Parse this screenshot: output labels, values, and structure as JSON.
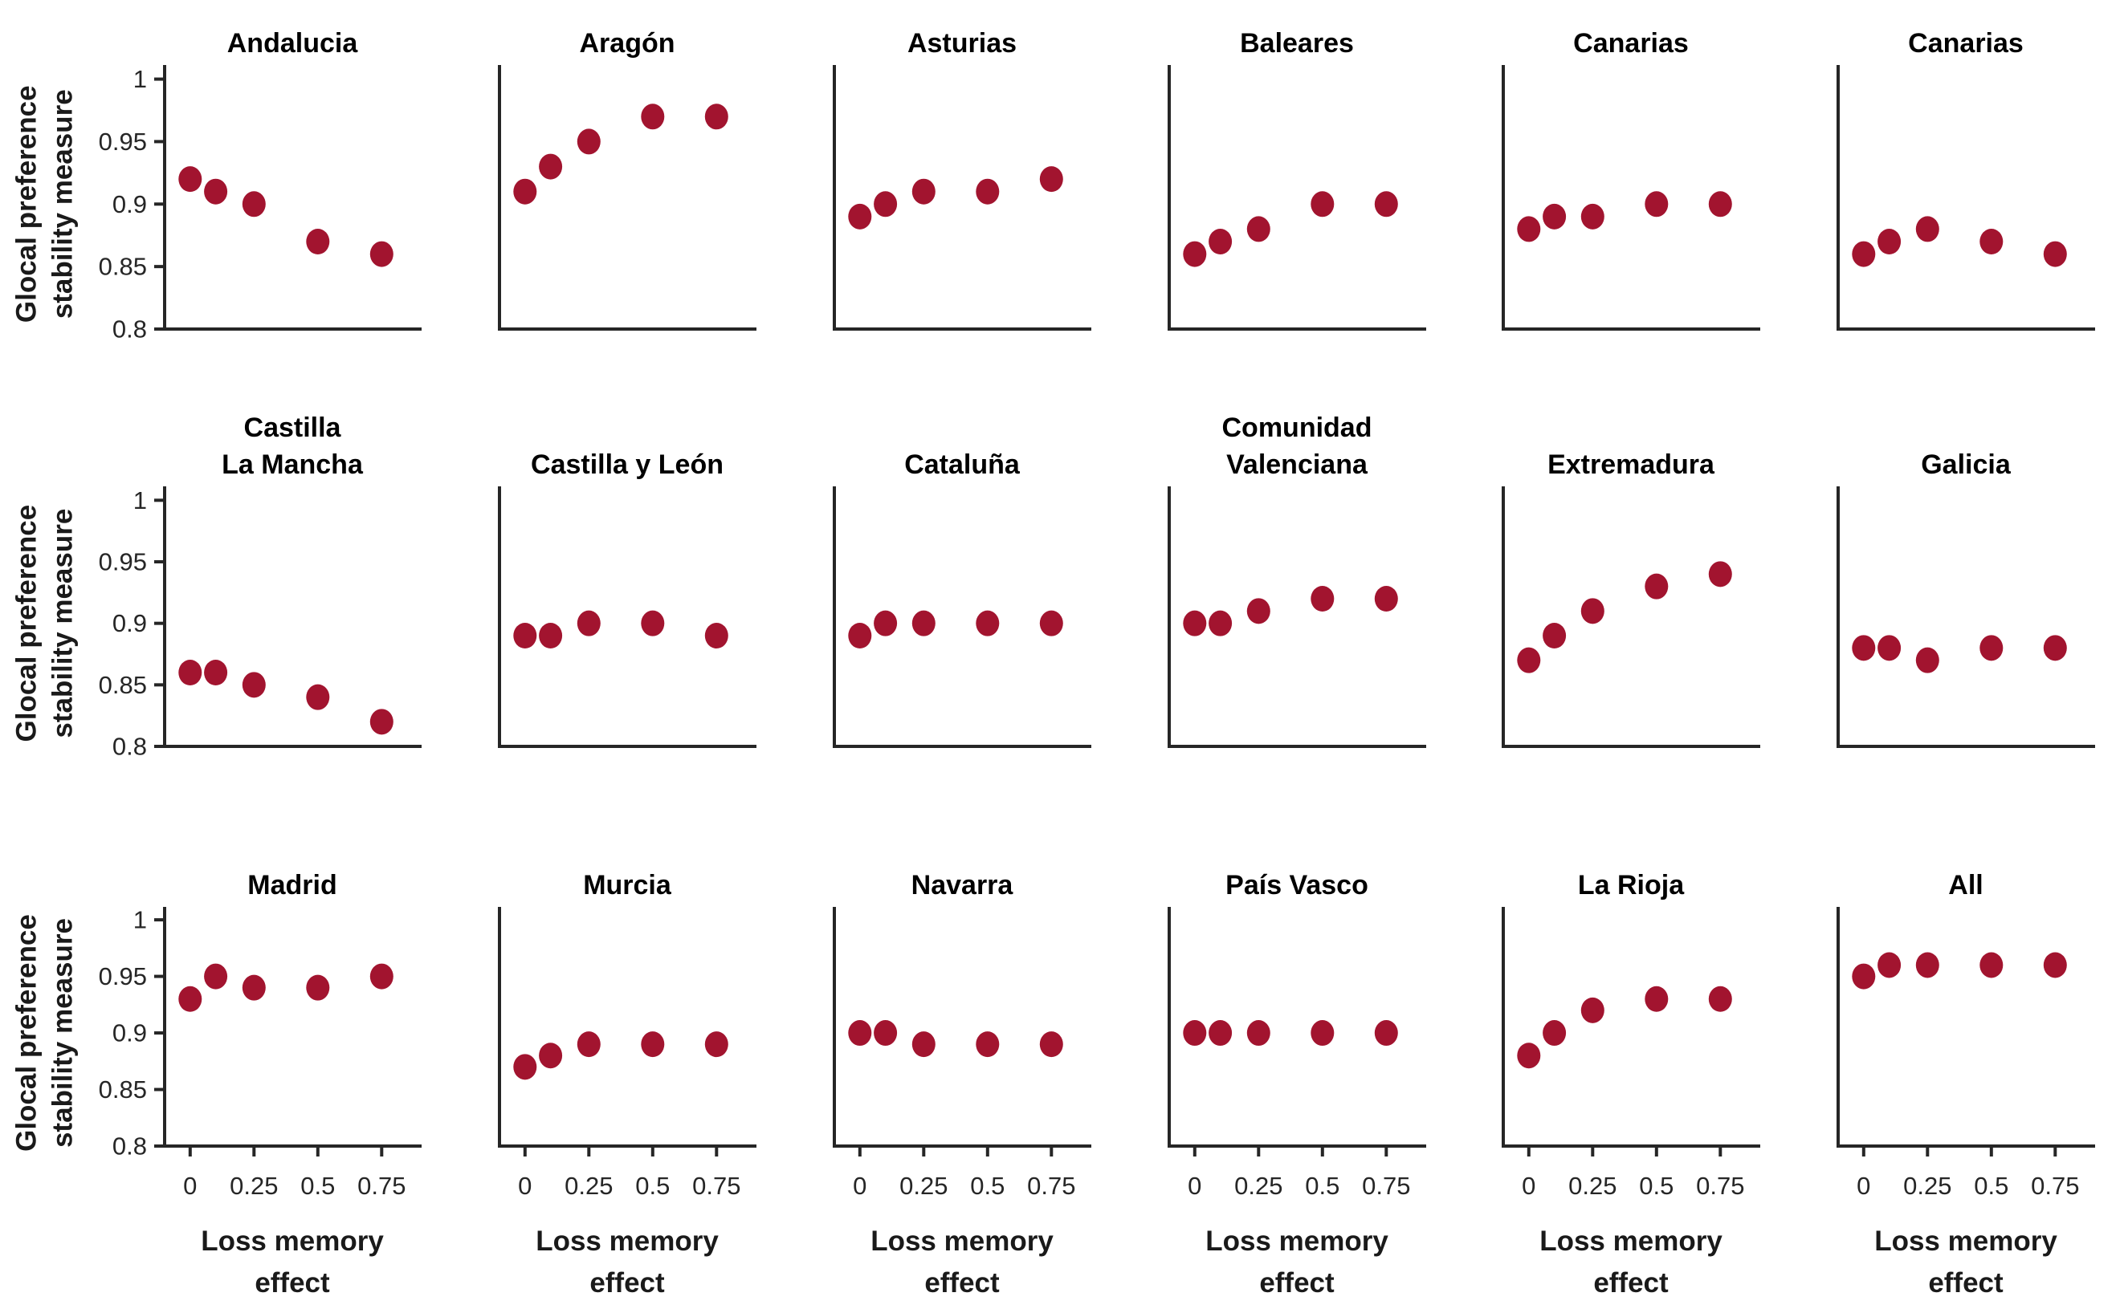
{
  "figure": {
    "background": "#ffffff",
    "description_title": "Glocal preference stability measure vs Loss memory effect by region"
  },
  "chart_data": {
    "type": "scatter",
    "layout": {
      "grid_rows": 3,
      "grid_cols": 6,
      "legend": "none",
      "grid_lines": false,
      "box": "left-and-bottom-axes-only",
      "tick_direction": "out"
    },
    "x": [
      0,
      0.1,
      0.25,
      0.5,
      0.75
    ],
    "xlim": [
      -0.1,
      0.9
    ],
    "ylim": [
      0.8,
      1.01
    ],
    "x_tick_values": [
      0,
      0.25,
      0.5,
      0.75
    ],
    "x_tick_labels": [
      "0",
      "0.25",
      "0.5",
      "0.75"
    ],
    "y_tick_values": [
      0.8,
      0.85,
      0.9,
      0.95,
      1
    ],
    "y_tick_labels": [
      "0.8",
      "0.85",
      "0.9",
      "0.95",
      "1"
    ],
    "xlabel_lines": [
      "Loss memory",
      "effect"
    ],
    "ylabel_lines": [
      "Glocal preference",
      "stability measure"
    ],
    "marker_color": "#A2142F",
    "axis_color": "#262626",
    "title_color": "#000000",
    "subplots": [
      {
        "title_lines": [
          "Andalucia"
        ],
        "values": [
          0.92,
          0.91,
          0.9,
          0.87,
          0.86
        ]
      },
      {
        "title_lines": [
          "Aragón"
        ],
        "values": [
          0.91,
          0.93,
          0.95,
          0.97,
          0.97
        ]
      },
      {
        "title_lines": [
          "Asturias"
        ],
        "values": [
          0.89,
          0.9,
          0.91,
          0.91,
          0.92
        ]
      },
      {
        "title_lines": [
          "Baleares"
        ],
        "values": [
          0.86,
          0.87,
          0.88,
          0.9,
          0.9
        ]
      },
      {
        "title_lines": [
          "Canarias"
        ],
        "values": [
          0.88,
          0.89,
          0.89,
          0.9,
          0.9
        ]
      },
      {
        "title_lines": [
          "Canarias"
        ],
        "values": [
          0.86,
          0.87,
          0.88,
          0.87,
          0.86
        ]
      },
      {
        "title_lines": [
          "Castilla",
          "La Mancha"
        ],
        "values": [
          0.86,
          0.86,
          0.85,
          0.84,
          0.82
        ]
      },
      {
        "title_lines": [
          "Castilla y León"
        ],
        "values": [
          0.89,
          0.89,
          0.9,
          0.9,
          0.89
        ]
      },
      {
        "title_lines": [
          "Cataluña"
        ],
        "values": [
          0.89,
          0.9,
          0.9,
          0.9,
          0.9
        ]
      },
      {
        "title_lines": [
          "Comunidad",
          "Valenciana"
        ],
        "values": [
          0.9,
          0.9,
          0.91,
          0.92,
          0.92
        ]
      },
      {
        "title_lines": [
          "Extremadura"
        ],
        "values": [
          0.87,
          0.89,
          0.91,
          0.93,
          0.94
        ]
      },
      {
        "title_lines": [
          "Galicia"
        ],
        "values": [
          0.88,
          0.88,
          0.87,
          0.88,
          0.88
        ]
      },
      {
        "title_lines": [
          "Madrid"
        ],
        "values": [
          0.93,
          0.95,
          0.94,
          0.94,
          0.95
        ]
      },
      {
        "title_lines": [
          "Murcia"
        ],
        "values": [
          0.87,
          0.88,
          0.89,
          0.89,
          0.89
        ]
      },
      {
        "title_lines": [
          "Navarra"
        ],
        "values": [
          0.9,
          0.9,
          0.89,
          0.89,
          0.89
        ]
      },
      {
        "title_lines": [
          "País Vasco"
        ],
        "values": [
          0.9,
          0.9,
          0.9,
          0.9,
          0.9
        ]
      },
      {
        "title_lines": [
          "La Rioja"
        ],
        "values": [
          0.88,
          0.9,
          0.92,
          0.93,
          0.93
        ]
      },
      {
        "title_lines": [
          "All"
        ],
        "values": [
          0.95,
          0.96,
          0.96,
          0.96,
          0.96
        ]
      }
    ]
  }
}
